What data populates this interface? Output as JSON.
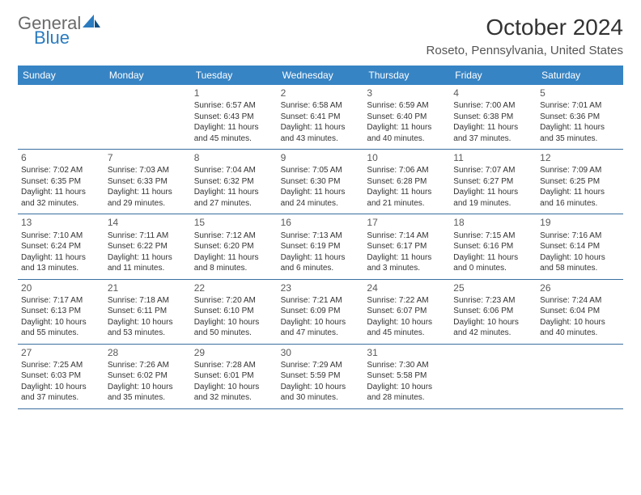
{
  "logo": {
    "part1": "General",
    "part2": "Blue"
  },
  "title": "October 2024",
  "location": "Roseto, Pennsylvania, United States",
  "colors": {
    "header_bg": "#3784c4",
    "header_text": "#ffffff",
    "rule": "#3a6fa0",
    "logo_gray": "#6a6a6a",
    "logo_blue": "#2a7bbf",
    "text": "#333333",
    "background": "#ffffff"
  },
  "day_names": [
    "Sunday",
    "Monday",
    "Tuesday",
    "Wednesday",
    "Thursday",
    "Friday",
    "Saturday"
  ],
  "first_weekday_index": 2,
  "days": [
    {
      "n": 1,
      "sunrise": "6:57 AM",
      "sunset": "6:43 PM",
      "daylight": "11 hours and 45 minutes."
    },
    {
      "n": 2,
      "sunrise": "6:58 AM",
      "sunset": "6:41 PM",
      "daylight": "11 hours and 43 minutes."
    },
    {
      "n": 3,
      "sunrise": "6:59 AM",
      "sunset": "6:40 PM",
      "daylight": "11 hours and 40 minutes."
    },
    {
      "n": 4,
      "sunrise": "7:00 AM",
      "sunset": "6:38 PM",
      "daylight": "11 hours and 37 minutes."
    },
    {
      "n": 5,
      "sunrise": "7:01 AM",
      "sunset": "6:36 PM",
      "daylight": "11 hours and 35 minutes."
    },
    {
      "n": 6,
      "sunrise": "7:02 AM",
      "sunset": "6:35 PM",
      "daylight": "11 hours and 32 minutes."
    },
    {
      "n": 7,
      "sunrise": "7:03 AM",
      "sunset": "6:33 PM",
      "daylight": "11 hours and 29 minutes."
    },
    {
      "n": 8,
      "sunrise": "7:04 AM",
      "sunset": "6:32 PM",
      "daylight": "11 hours and 27 minutes."
    },
    {
      "n": 9,
      "sunrise": "7:05 AM",
      "sunset": "6:30 PM",
      "daylight": "11 hours and 24 minutes."
    },
    {
      "n": 10,
      "sunrise": "7:06 AM",
      "sunset": "6:28 PM",
      "daylight": "11 hours and 21 minutes."
    },
    {
      "n": 11,
      "sunrise": "7:07 AM",
      "sunset": "6:27 PM",
      "daylight": "11 hours and 19 minutes."
    },
    {
      "n": 12,
      "sunrise": "7:09 AM",
      "sunset": "6:25 PM",
      "daylight": "11 hours and 16 minutes."
    },
    {
      "n": 13,
      "sunrise": "7:10 AM",
      "sunset": "6:24 PM",
      "daylight": "11 hours and 13 minutes."
    },
    {
      "n": 14,
      "sunrise": "7:11 AM",
      "sunset": "6:22 PM",
      "daylight": "11 hours and 11 minutes."
    },
    {
      "n": 15,
      "sunrise": "7:12 AM",
      "sunset": "6:20 PM",
      "daylight": "11 hours and 8 minutes."
    },
    {
      "n": 16,
      "sunrise": "7:13 AM",
      "sunset": "6:19 PM",
      "daylight": "11 hours and 6 minutes."
    },
    {
      "n": 17,
      "sunrise": "7:14 AM",
      "sunset": "6:17 PM",
      "daylight": "11 hours and 3 minutes."
    },
    {
      "n": 18,
      "sunrise": "7:15 AM",
      "sunset": "6:16 PM",
      "daylight": "11 hours and 0 minutes."
    },
    {
      "n": 19,
      "sunrise": "7:16 AM",
      "sunset": "6:14 PM",
      "daylight": "10 hours and 58 minutes."
    },
    {
      "n": 20,
      "sunrise": "7:17 AM",
      "sunset": "6:13 PM",
      "daylight": "10 hours and 55 minutes."
    },
    {
      "n": 21,
      "sunrise": "7:18 AM",
      "sunset": "6:11 PM",
      "daylight": "10 hours and 53 minutes."
    },
    {
      "n": 22,
      "sunrise": "7:20 AM",
      "sunset": "6:10 PM",
      "daylight": "10 hours and 50 minutes."
    },
    {
      "n": 23,
      "sunrise": "7:21 AM",
      "sunset": "6:09 PM",
      "daylight": "10 hours and 47 minutes."
    },
    {
      "n": 24,
      "sunrise": "7:22 AM",
      "sunset": "6:07 PM",
      "daylight": "10 hours and 45 minutes."
    },
    {
      "n": 25,
      "sunrise": "7:23 AM",
      "sunset": "6:06 PM",
      "daylight": "10 hours and 42 minutes."
    },
    {
      "n": 26,
      "sunrise": "7:24 AM",
      "sunset": "6:04 PM",
      "daylight": "10 hours and 40 minutes."
    },
    {
      "n": 27,
      "sunrise": "7:25 AM",
      "sunset": "6:03 PM",
      "daylight": "10 hours and 37 minutes."
    },
    {
      "n": 28,
      "sunrise": "7:26 AM",
      "sunset": "6:02 PM",
      "daylight": "10 hours and 35 minutes."
    },
    {
      "n": 29,
      "sunrise": "7:28 AM",
      "sunset": "6:01 PM",
      "daylight": "10 hours and 32 minutes."
    },
    {
      "n": 30,
      "sunrise": "7:29 AM",
      "sunset": "5:59 PM",
      "daylight": "10 hours and 30 minutes."
    },
    {
      "n": 31,
      "sunrise": "7:30 AM",
      "sunset": "5:58 PM",
      "daylight": "10 hours and 28 minutes."
    }
  ],
  "labels": {
    "sunrise": "Sunrise:",
    "sunset": "Sunset:",
    "daylight": "Daylight:"
  }
}
